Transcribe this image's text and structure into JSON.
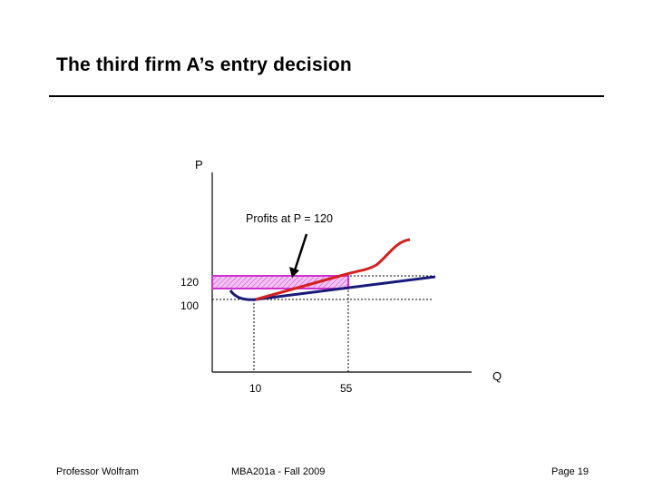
{
  "slide": {
    "title": "The third firm A’s entry decision"
  },
  "diagram": {
    "y_axis_label": "P",
    "x_axis_label": "Q",
    "annotation": "Profits at P = 120",
    "y_ticks": [
      "120",
      "100"
    ],
    "x_ticks": [
      "10",
      "55"
    ],
    "colors": {
      "axes": "#000000",
      "avg_cost_curve": "#1a1a7a",
      "marginal_cost_curve": "#d42020",
      "profit_rectangle_border": "#cc33cc",
      "profit_rectangle_fill": "#f4c4f4",
      "guide_lines": "#000000"
    }
  },
  "footer": {
    "left": "Professor Wolfram",
    "center": "MBA201a - Fall 2009",
    "right": "Page 19"
  }
}
